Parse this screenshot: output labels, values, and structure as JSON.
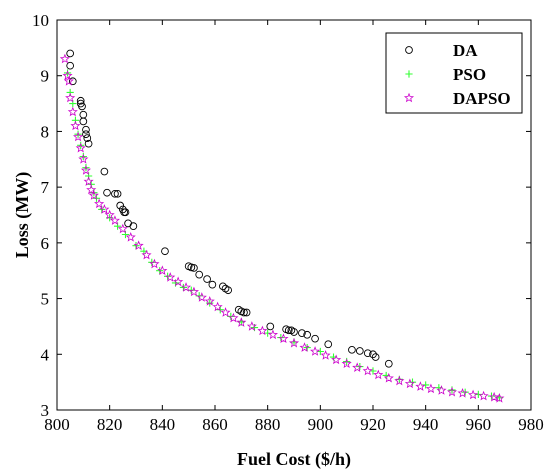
{
  "chart_data": {
    "type": "scatter",
    "title": "",
    "xlabel": "Fuel Cost ($/h)",
    "ylabel": "Loss (MW)",
    "xlim": [
      800,
      980
    ],
    "ylim": [
      3,
      10
    ],
    "xticks": [
      "800",
      "820",
      "840",
      "860",
      "880",
      "900",
      "920",
      "940",
      "960",
      "980"
    ],
    "yticks": [
      "3",
      "4",
      "5",
      "6",
      "7",
      "8",
      "9",
      "10"
    ],
    "grid": false,
    "legend_position": "top-right",
    "series": [
      {
        "name": "DA",
        "marker": "circle",
        "color": "#000000",
        "points": [
          [
            805,
            9.4
          ],
          [
            805,
            9.18
          ],
          [
            806,
            8.9
          ],
          [
            809,
            8.55
          ],
          [
            809,
            8.5
          ],
          [
            809.5,
            8.45
          ],
          [
            810,
            8.3
          ],
          [
            810,
            8.18
          ],
          [
            811,
            8.03
          ],
          [
            811,
            7.95
          ],
          [
            811.5,
            7.88
          ],
          [
            812,
            7.78
          ],
          [
            818,
            7.28
          ],
          [
            819,
            6.9
          ],
          [
            822,
            6.88
          ],
          [
            823,
            6.88
          ],
          [
            824,
            6.67
          ],
          [
            825,
            6.6
          ],
          [
            825.5,
            6.55
          ],
          [
            826,
            6.55
          ],
          [
            827,
            6.35
          ],
          [
            829,
            6.3
          ],
          [
            841,
            5.85
          ],
          [
            850,
            5.58
          ],
          [
            851,
            5.56
          ],
          [
            852,
            5.55
          ],
          [
            854,
            5.43
          ],
          [
            857,
            5.35
          ],
          [
            859,
            5.25
          ],
          [
            863,
            5.22
          ],
          [
            864,
            5.18
          ],
          [
            865,
            5.15
          ],
          [
            869,
            4.8
          ],
          [
            870,
            4.77
          ],
          [
            871,
            4.75
          ],
          [
            872,
            4.75
          ],
          [
            881,
            4.5
          ],
          [
            887,
            4.45
          ],
          [
            888,
            4.43
          ],
          [
            889,
            4.43
          ],
          [
            890,
            4.4
          ],
          [
            893,
            4.38
          ],
          [
            895,
            4.35
          ],
          [
            898,
            4.28
          ],
          [
            903,
            4.18
          ],
          [
            912,
            4.08
          ],
          [
            915,
            4.06
          ],
          [
            918,
            4.02
          ],
          [
            920,
            4.0
          ],
          [
            921,
            3.95
          ],
          [
            926,
            3.83
          ]
        ]
      },
      {
        "name": "PSO",
        "marker": "plus",
        "color": "#33ff33",
        "points": [
          [
            804,
            9.05
          ],
          [
            805,
            8.7
          ],
          [
            806,
            8.5
          ],
          [
            807,
            8.2
          ],
          [
            808,
            7.95
          ],
          [
            809,
            7.75
          ],
          [
            810,
            7.55
          ],
          [
            811,
            7.35
          ],
          [
            812,
            7.2
          ],
          [
            813,
            7.05
          ],
          [
            814,
            6.9
          ],
          [
            815,
            6.8
          ],
          [
            817,
            6.6
          ],
          [
            820,
            6.45
          ],
          [
            823,
            6.3
          ],
          [
            826,
            6.15
          ],
          [
            830,
            5.95
          ],
          [
            833,
            5.85
          ],
          [
            836,
            5.65
          ],
          [
            839,
            5.5
          ],
          [
            842,
            5.4
          ],
          [
            845,
            5.28
          ],
          [
            848,
            5.2
          ],
          [
            851,
            5.15
          ],
          [
            854,
            5.05
          ],
          [
            858,
            4.92
          ],
          [
            862,
            4.8
          ],
          [
            866,
            4.68
          ],
          [
            870,
            4.58
          ],
          [
            875,
            4.48
          ],
          [
            880,
            4.38
          ],
          [
            885,
            4.3
          ],
          [
            890,
            4.22
          ],
          [
            895,
            4.12
          ],
          [
            900,
            4.05
          ],
          [
            905,
            3.95
          ],
          [
            910,
            3.87
          ],
          [
            915,
            3.78
          ],
          [
            920,
            3.7
          ],
          [
            925,
            3.62
          ],
          [
            930,
            3.55
          ],
          [
            935,
            3.5
          ],
          [
            940,
            3.45
          ],
          [
            945,
            3.4
          ],
          [
            950,
            3.36
          ],
          [
            955,
            3.32
          ],
          [
            960,
            3.28
          ],
          [
            965,
            3.25
          ],
          [
            968,
            3.22
          ]
        ]
      },
      {
        "name": "DAPSO",
        "marker": "star",
        "color": "#cc00cc",
        "points": [
          [
            803,
            9.3
          ],
          [
            804,
            9.0
          ],
          [
            804.5,
            8.9
          ],
          [
            805,
            8.6
          ],
          [
            806,
            8.35
          ],
          [
            807,
            8.1
          ],
          [
            808,
            7.9
          ],
          [
            809,
            7.7
          ],
          [
            810,
            7.5
          ],
          [
            811,
            7.3
          ],
          [
            812,
            7.1
          ],
          [
            813,
            6.95
          ],
          [
            814,
            6.85
          ],
          [
            816,
            6.7
          ],
          [
            818,
            6.6
          ],
          [
            820,
            6.5
          ],
          [
            822,
            6.4
          ],
          [
            825,
            6.25
          ],
          [
            828,
            6.1
          ],
          [
            831,
            5.95
          ],
          [
            834,
            5.78
          ],
          [
            837,
            5.62
          ],
          [
            840,
            5.5
          ],
          [
            843,
            5.38
          ],
          [
            846,
            5.3
          ],
          [
            849,
            5.2
          ],
          [
            852,
            5.12
          ],
          [
            855,
            5.02
          ],
          [
            858,
            4.95
          ],
          [
            861,
            4.85
          ],
          [
            864,
            4.75
          ],
          [
            867,
            4.65
          ],
          [
            870,
            4.57
          ],
          [
            874,
            4.5
          ],
          [
            878,
            4.42
          ],
          [
            882,
            4.35
          ],
          [
            886,
            4.28
          ],
          [
            890,
            4.2
          ],
          [
            894,
            4.12
          ],
          [
            898,
            4.05
          ],
          [
            902,
            3.98
          ],
          [
            906,
            3.9
          ],
          [
            910,
            3.83
          ],
          [
            914,
            3.76
          ],
          [
            918,
            3.7
          ],
          [
            922,
            3.63
          ],
          [
            926,
            3.57
          ],
          [
            930,
            3.52
          ],
          [
            934,
            3.47
          ],
          [
            938,
            3.42
          ],
          [
            942,
            3.38
          ],
          [
            946,
            3.35
          ],
          [
            950,
            3.32
          ],
          [
            954,
            3.3
          ],
          [
            958,
            3.27
          ],
          [
            962,
            3.25
          ],
          [
            966,
            3.23
          ],
          [
            968,
            3.21
          ]
        ]
      }
    ]
  }
}
